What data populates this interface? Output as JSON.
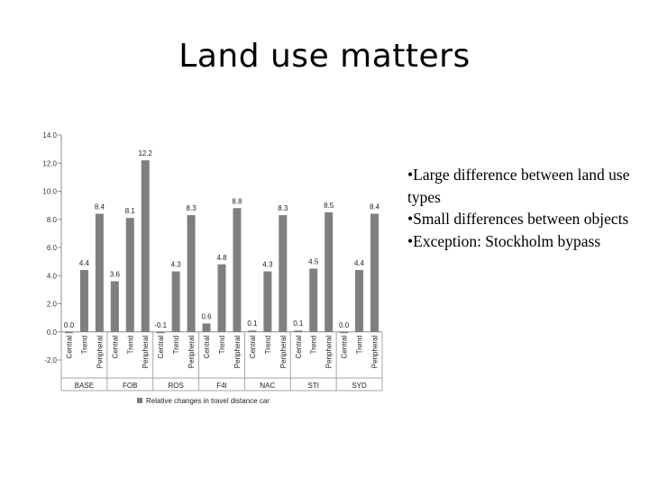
{
  "slide": {
    "title": "Land use matters"
  },
  "bullets": [
    "•Large difference between land use types",
    "•Small differences between objects",
    "•Exception: Stockholm bypass"
  ],
  "chart_data": {
    "type": "bar",
    "groups": [
      "BASE",
      "FOB",
      "ROS",
      "F4I",
      "NAC",
      "STI",
      "SYD"
    ],
    "subcategories": [
      "Central",
      "Trend",
      "Peripheral"
    ],
    "series": [
      {
        "name": "Relative changes in travel distance car",
        "values": [
          [
            0.0,
            4.4,
            8.4
          ],
          [
            3.6,
            8.1,
            12.2
          ],
          [
            -0.1,
            4.3,
            8.3
          ],
          [
            0.6,
            4.8,
            8.8
          ],
          [
            0.1,
            4.3,
            8.3
          ],
          [
            0.1,
            4.5,
            8.5
          ],
          [
            0.0,
            4.4,
            8.4
          ]
        ],
        "labels": [
          [
            "0.0",
            "4.4",
            "8.4"
          ],
          [
            "3.6",
            "8.1",
            "12.2"
          ],
          [
            "-0.1",
            "4.3",
            "8.3"
          ],
          [
            "0.6",
            "4.8",
            "8.8"
          ],
          [
            "0.1",
            "4.3",
            "8.3"
          ],
          [
            "0.1",
            "4.5",
            "8.5"
          ],
          [
            "0.0",
            "4.4",
            "8.4"
          ]
        ]
      }
    ],
    "yticks": [
      "-2.0",
      "0.0",
      "2.0",
      "4.0",
      "6.0",
      "8.0",
      "10.0",
      "12.0",
      "14.0"
    ],
    "ylim": [
      -2,
      14
    ],
    "legend_position": "bottom",
    "bar_color": "#7f7f7f",
    "grid": false
  }
}
